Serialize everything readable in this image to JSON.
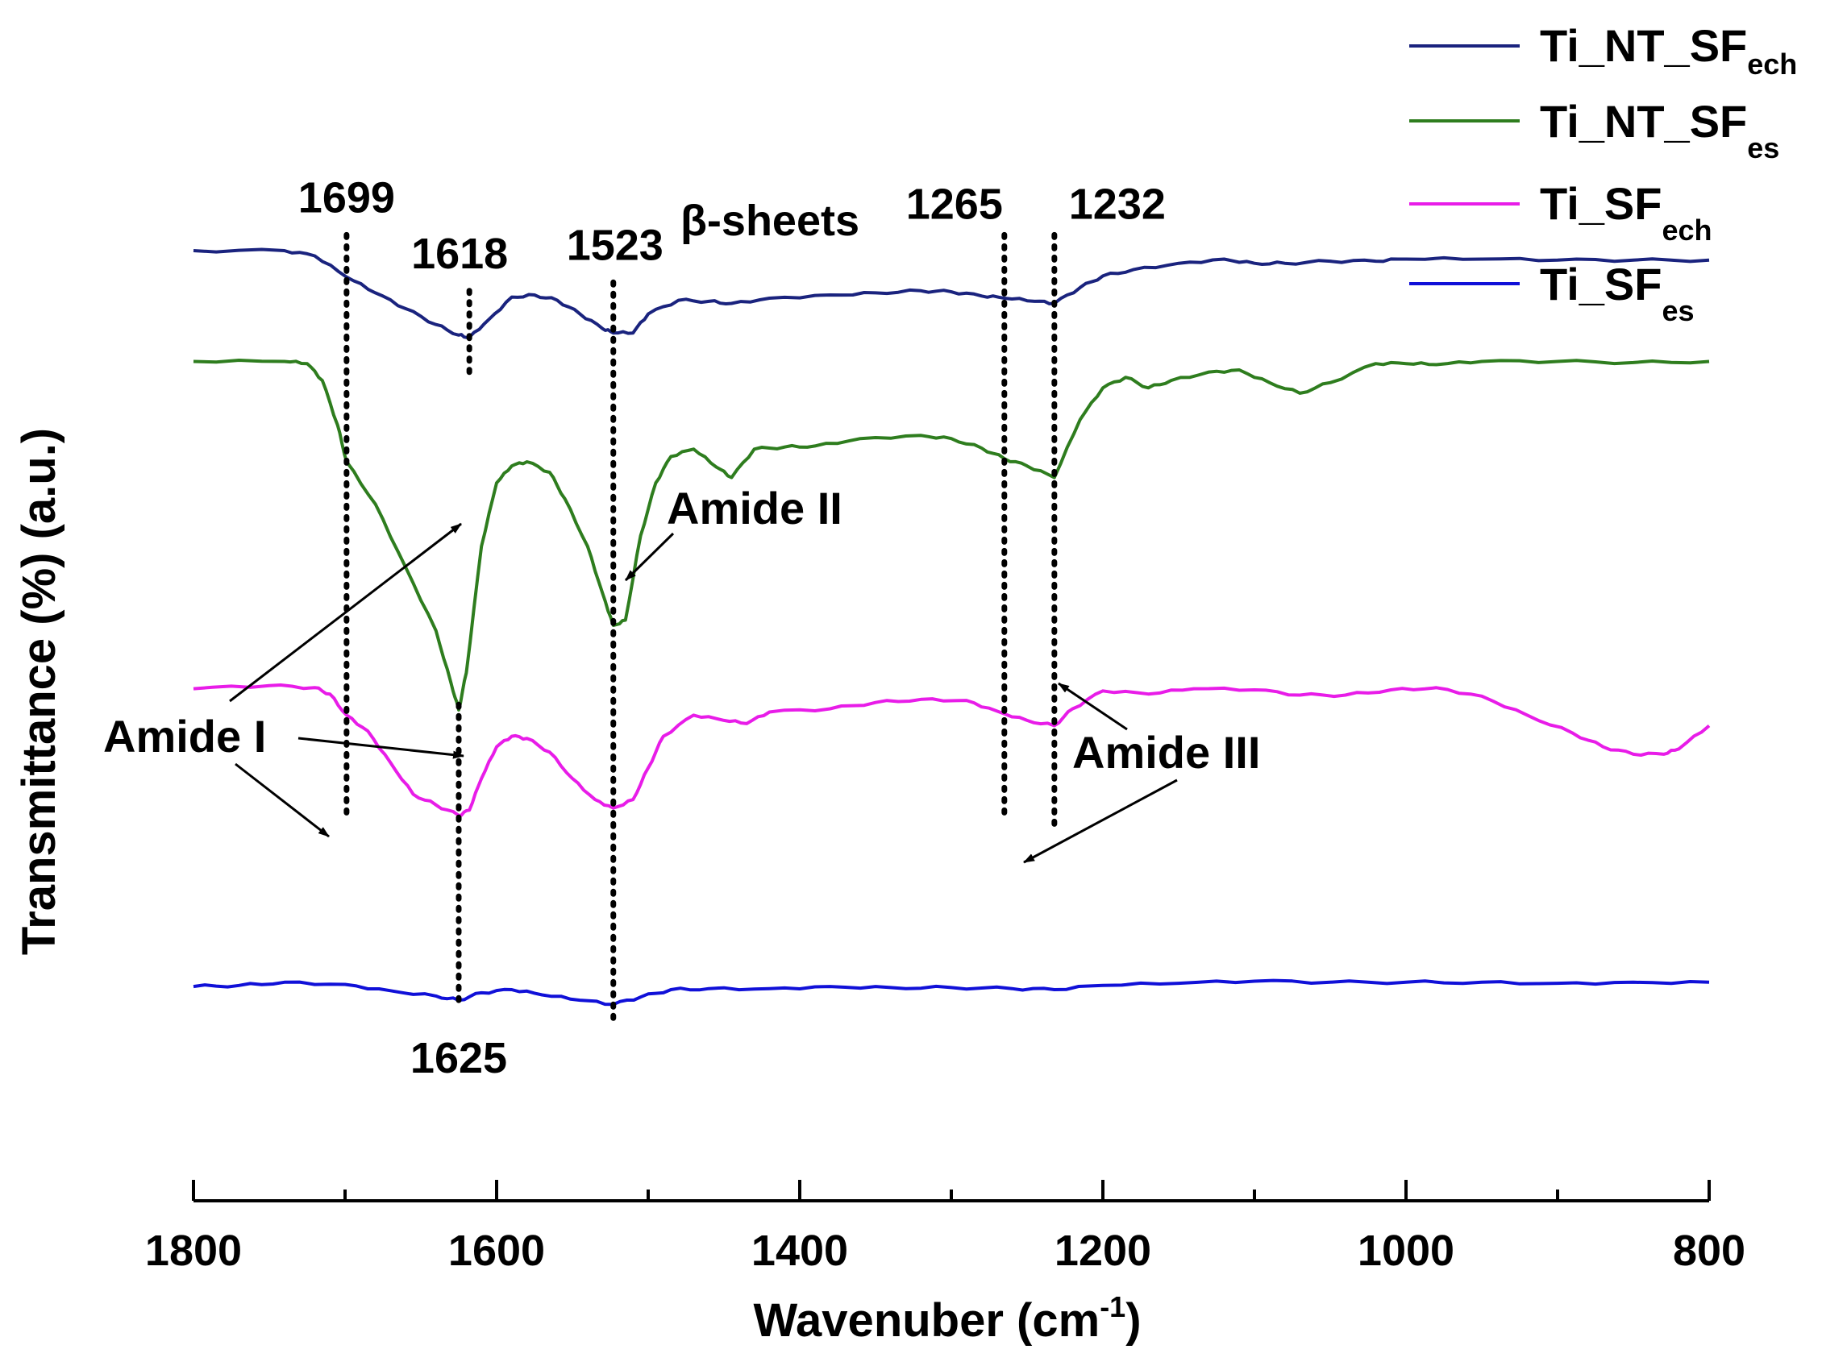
{
  "chart_data": {
    "type": "line",
    "title": "",
    "xlabel_main": "Wavenuber (cm",
    "xlabel_sup": "-1",
    "xlabel_tail": ")",
    "ylabel": "Transmittance (%) (a.u.)",
    "xlim": [
      1800,
      800
    ],
    "x_ticks": [
      1800,
      1600,
      1400,
      1200,
      1000,
      800
    ],
    "x_tick_labels": [
      "1800",
      "1600",
      "1400",
      "1200",
      "1000",
      "800"
    ],
    "y_units": "arbitrary, stacked offsets (0 = bottom of plot, 1 = top)",
    "series": [
      {
        "name": "Ti_NT_SF",
        "sub": "ech",
        "color": "#1a237e",
        "points": [
          [
            1800,
            0.9
          ],
          [
            1740,
            0.9
          ],
          [
            1720,
            0.895
          ],
          [
            1699,
            0.875
          ],
          [
            1680,
            0.86
          ],
          [
            1660,
            0.845
          ],
          [
            1640,
            0.83
          ],
          [
            1625,
            0.82
          ],
          [
            1618,
            0.818
          ],
          [
            1605,
            0.835
          ],
          [
            1590,
            0.856
          ],
          [
            1575,
            0.858
          ],
          [
            1560,
            0.853
          ],
          [
            1545,
            0.84
          ],
          [
            1530,
            0.826
          ],
          [
            1523,
            0.822
          ],
          [
            1510,
            0.822
          ],
          [
            1500,
            0.84
          ],
          [
            1480,
            0.853
          ],
          [
            1460,
            0.852
          ],
          [
            1445,
            0.85
          ],
          [
            1420,
            0.855
          ],
          [
            1380,
            0.858
          ],
          [
            1350,
            0.86
          ],
          [
            1320,
            0.862
          ],
          [
            1300,
            0.861
          ],
          [
            1280,
            0.857
          ],
          [
            1265,
            0.855
          ],
          [
            1245,
            0.852
          ],
          [
            1232,
            0.85
          ],
          [
            1215,
            0.865
          ],
          [
            1200,
            0.876
          ],
          [
            1180,
            0.882
          ],
          [
            1150,
            0.888
          ],
          [
            1120,
            0.892
          ],
          [
            1100,
            0.888
          ],
          [
            1080,
            0.888
          ],
          [
            1050,
            0.89
          ],
          [
            1020,
            0.89
          ],
          [
            1000,
            0.892
          ],
          [
            950,
            0.892
          ],
          [
            900,
            0.891
          ],
          [
            850,
            0.891
          ],
          [
            800,
            0.891
          ]
        ]
      },
      {
        "name": "Ti_NT_SF",
        "sub": "es",
        "color": "#2e7d1e",
        "points": [
          [
            1800,
            0.795
          ],
          [
            1740,
            0.795
          ],
          [
            1725,
            0.793
          ],
          [
            1715,
            0.777
          ],
          [
            1705,
            0.735
          ],
          [
            1699,
            0.7
          ],
          [
            1680,
            0.66
          ],
          [
            1660,
            0.6
          ],
          [
            1640,
            0.54
          ],
          [
            1630,
            0.49
          ],
          [
            1625,
            0.465
          ],
          [
            1620,
            0.5
          ],
          [
            1610,
            0.62
          ],
          [
            1600,
            0.68
          ],
          [
            1590,
            0.696
          ],
          [
            1580,
            0.7
          ],
          [
            1565,
            0.69
          ],
          [
            1555,
            0.665
          ],
          [
            1540,
            0.62
          ],
          [
            1530,
            0.575
          ],
          [
            1523,
            0.545
          ],
          [
            1515,
            0.55
          ],
          [
            1505,
            0.63
          ],
          [
            1495,
            0.68
          ],
          [
            1485,
            0.705
          ],
          [
            1470,
            0.712
          ],
          [
            1455,
            0.695
          ],
          [
            1445,
            0.685
          ],
          [
            1430,
            0.712
          ],
          [
            1410,
            0.714
          ],
          [
            1390,
            0.715
          ],
          [
            1360,
            0.722
          ],
          [
            1320,
            0.725
          ],
          [
            1300,
            0.722
          ],
          [
            1280,
            0.713
          ],
          [
            1265,
            0.703
          ],
          [
            1250,
            0.696
          ],
          [
            1232,
            0.685
          ],
          [
            1215,
            0.74
          ],
          [
            1200,
            0.77
          ],
          [
            1185,
            0.78
          ],
          [
            1170,
            0.77
          ],
          [
            1155,
            0.777
          ],
          [
            1130,
            0.785
          ],
          [
            1110,
            0.787
          ],
          [
            1090,
            0.775
          ],
          [
            1070,
            0.765
          ],
          [
            1050,
            0.775
          ],
          [
            1020,
            0.793
          ],
          [
            1000,
            0.793
          ],
          [
            980,
            0.792
          ],
          [
            950,
            0.795
          ],
          [
            900,
            0.795
          ],
          [
            850,
            0.794
          ],
          [
            800,
            0.795
          ]
        ]
      },
      {
        "name": "Ti_SF",
        "sub": "ech",
        "color": "#e81ce8",
        "points": [
          [
            1800,
            0.485
          ],
          [
            1750,
            0.488
          ],
          [
            1720,
            0.486
          ],
          [
            1710,
            0.48
          ],
          [
            1699,
            0.46
          ],
          [
            1685,
            0.445
          ],
          [
            1670,
            0.415
          ],
          [
            1655,
            0.385
          ],
          [
            1640,
            0.375
          ],
          [
            1625,
            0.365
          ],
          [
            1618,
            0.37
          ],
          [
            1610,
            0.4
          ],
          [
            1600,
            0.43
          ],
          [
            1590,
            0.44
          ],
          [
            1580,
            0.438
          ],
          [
            1565,
            0.425
          ],
          [
            1550,
            0.4
          ],
          [
            1535,
            0.38
          ],
          [
            1523,
            0.372
          ],
          [
            1510,
            0.38
          ],
          [
            1500,
            0.41
          ],
          [
            1490,
            0.44
          ],
          [
            1470,
            0.46
          ],
          [
            1450,
            0.455
          ],
          [
            1435,
            0.452
          ],
          [
            1420,
            0.463
          ],
          [
            1380,
            0.466
          ],
          [
            1350,
            0.472
          ],
          [
            1320,
            0.475
          ],
          [
            1290,
            0.474
          ],
          [
            1270,
            0.464
          ],
          [
            1250,
            0.455
          ],
          [
            1232,
            0.45
          ],
          [
            1220,
            0.466
          ],
          [
            1200,
            0.483
          ],
          [
            1170,
            0.48
          ],
          [
            1140,
            0.485
          ],
          [
            1100,
            0.484
          ],
          [
            1070,
            0.479
          ],
          [
            1040,
            0.479
          ],
          [
            1010,
            0.484
          ],
          [
            980,
            0.486
          ],
          [
            950,
            0.478
          ],
          [
            920,
            0.46
          ],
          [
            890,
            0.443
          ],
          [
            870,
            0.43
          ],
          [
            850,
            0.423
          ],
          [
            830,
            0.423
          ],
          [
            820,
            0.428
          ],
          [
            800,
            0.45
          ]
        ]
      },
      {
        "name": "Ti_SF",
        "sub": "es",
        "color": "#1010d8",
        "points": [
          [
            1800,
            0.203
          ],
          [
            1770,
            0.204
          ],
          [
            1740,
            0.207
          ],
          [
            1700,
            0.205
          ],
          [
            1670,
            0.199
          ],
          [
            1640,
            0.194
          ],
          [
            1625,
            0.19
          ],
          [
            1610,
            0.197
          ],
          [
            1590,
            0.2
          ],
          [
            1570,
            0.195
          ],
          [
            1545,
            0.19
          ],
          [
            1523,
            0.186
          ],
          [
            1505,
            0.193
          ],
          [
            1485,
            0.2
          ],
          [
            1460,
            0.201
          ],
          [
            1420,
            0.201
          ],
          [
            1380,
            0.203
          ],
          [
            1340,
            0.202
          ],
          [
            1300,
            0.202
          ],
          [
            1260,
            0.201
          ],
          [
            1232,
            0.2
          ],
          [
            1200,
            0.204
          ],
          [
            1150,
            0.206
          ],
          [
            1100,
            0.208
          ],
          [
            1050,
            0.207
          ],
          [
            1000,
            0.207
          ],
          [
            950,
            0.207
          ],
          [
            900,
            0.206
          ],
          [
            850,
            0.207
          ],
          [
            800,
            0.207
          ]
        ]
      }
    ],
    "peak_markers": [
      {
        "label": "1699",
        "x": 1699,
        "y_top": 0.915,
        "y_bottom": 0.366
      },
      {
        "label": "1618",
        "x": 1618,
        "y_top": 0.862,
        "y_bottom": 0.78
      },
      {
        "label": "1625",
        "x": 1625,
        "y_top": 0.47,
        "y_bottom": 0.19
      },
      {
        "label": "1523",
        "x": 1523,
        "y_top": 0.87,
        "y_bottom": 0.17
      },
      {
        "label": "1265",
        "x": 1265,
        "y_top": 0.915,
        "y_bottom": 0.362
      },
      {
        "label": "1232",
        "x": 1232,
        "y_top": 0.915,
        "y_bottom": 0.355
      }
    ],
    "annotations": [
      "β-sheets",
      "Amide I",
      "Amide II",
      "Amide III"
    ]
  },
  "legend": {
    "items": [
      {
        "name": "Ti_NT_SF",
        "sub": "ech",
        "color": "#1a237e"
      },
      {
        "name": "Ti_NT_SF",
        "sub": "es",
        "color": "#2e7d1e"
      },
      {
        "name": "Ti_SF",
        "sub": "ech",
        "color": "#e81ce8"
      },
      {
        "name": "Ti_SF",
        "sub": "es",
        "color": "#1010d8"
      }
    ]
  }
}
